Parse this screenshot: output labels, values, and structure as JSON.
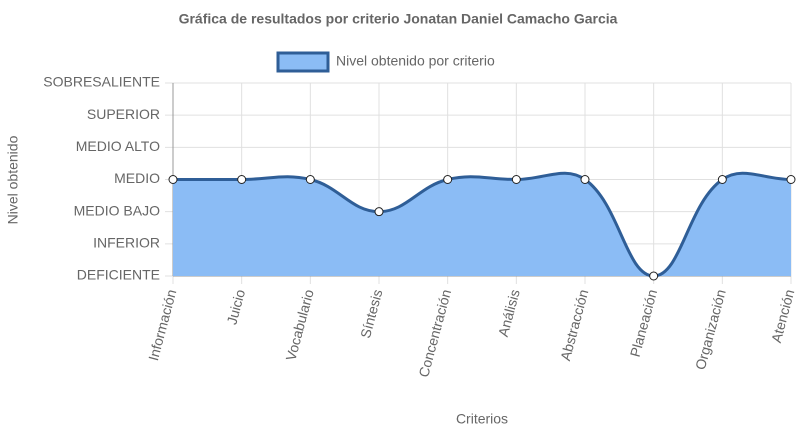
{
  "chart_data": {
    "type": "line",
    "title": "Gráfica de resultados por criterio Jonatan Daniel Camacho Garcia",
    "x_label": "Criterios",
    "y_label": "Nivel obtenido",
    "categories": [
      "Información",
      "Juicio",
      "Vocabulario",
      "Síntesis",
      "Concentración",
      "Análisis",
      "Abstracción",
      "Planeación",
      "Organización",
      "Atención"
    ],
    "series": [
      {
        "name": "Nivel obtenido por criterio",
        "color": "#2f5e97",
        "fill": "#8bbcf5",
        "values": [
          3,
          3,
          3,
          2,
          3,
          3,
          3,
          0,
          3,
          3
        ]
      }
    ],
    "ylim": [
      0,
      6
    ],
    "yticks": [
      {
        "value": 0,
        "label": "DEFICIENTE"
      },
      {
        "value": 1,
        "label": "INFERIOR"
      },
      {
        "value": 2,
        "label": "MEDIO BAJO"
      },
      {
        "value": 3,
        "label": "MEDIO"
      },
      {
        "value": 4,
        "label": "MEDIO ALTO"
      },
      {
        "value": 5,
        "label": "SUPERIOR"
      },
      {
        "value": 6,
        "label": "SOBRESALIENTE"
      }
    ],
    "grid": true,
    "legend": "top"
  }
}
